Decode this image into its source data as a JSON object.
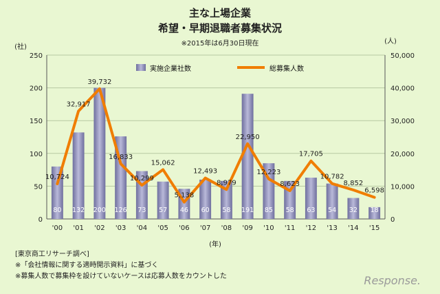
{
  "chart_data": {
    "type": "bar+line",
    "title": "主な上場企業",
    "subtitle": "希望・早期退職者募集状況",
    "note_top": "※2015年は6月30日現在",
    "categories": [
      "'00",
      "'01",
      "'02",
      "'03",
      "'04",
      "'05",
      "'06",
      "'07",
      "'08",
      "'09",
      "'10",
      "'11",
      "'12",
      "'13",
      "'14",
      "'15"
    ],
    "series": [
      {
        "name": "実施企業社数",
        "type": "bar",
        "axis": "left",
        "values": [
          80,
          132,
          200,
          126,
          73,
          57,
          46,
          60,
          58,
          191,
          85,
          58,
          63,
          54,
          32,
          18
        ],
        "labels": [
          "80",
          "132",
          "200",
          "126",
          "73",
          "57",
          "46",
          "60",
          "58",
          "191",
          "85",
          "58",
          "63",
          "54",
          "32",
          "18"
        ]
      },
      {
        "name": "総募集人数",
        "type": "line",
        "axis": "right",
        "values": [
          10724,
          32917,
          39732,
          16833,
          10299,
          15062,
          5138,
          12493,
          8979,
          22950,
          12223,
          8623,
          17705,
          10782,
          8852,
          6598
        ],
        "labels": [
          "10,724",
          "32,917",
          "39,732",
          "16,833",
          "10,299",
          "15,062",
          "5,138",
          "12,493",
          "8,979",
          "22,950",
          "12,223",
          "8,623",
          "17,705",
          "10,782",
          "8,852",
          "6,598"
        ]
      }
    ],
    "y_left": {
      "unit": "(社)",
      "range": [
        0,
        250
      ],
      "ticks": [
        "0",
        "50",
        "100",
        "150",
        "200",
        "250"
      ]
    },
    "y_right": {
      "unit": "(人)",
      "range": [
        0,
        50000
      ],
      "ticks": [
        "0",
        "10,000",
        "20,000",
        "30,000",
        "40,000",
        "50,000"
      ]
    },
    "xlabel": "(年)",
    "legend_placement": "top-center",
    "colors": {
      "bar": "#8e8eb8",
      "line": "#f07d00",
      "background": "#e9f7d2"
    }
  },
  "footnotes": [
    "[東京商工リサーチ調べ]",
    "※「会社情報に関する適時開示資料」に基づく",
    "※募集人数で募集枠を設けていないケースは応募人数をカウントした"
  ],
  "watermark": "Response."
}
